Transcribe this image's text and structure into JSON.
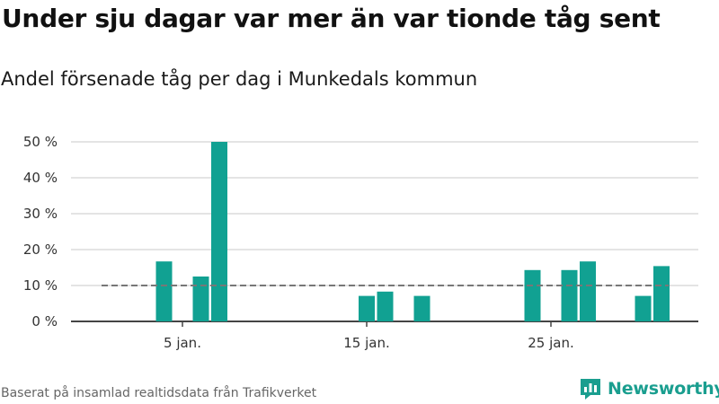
{
  "title": "Under sju dagar var mer än var tionde tåg sent",
  "subtitle": "Andel försenade tåg per dag i Munkedals kommun",
  "footer": "Baserat på insamlad realtidsdata från Trafikverket",
  "brand": {
    "name": "Newsworthy",
    "icon": "newsworthy-logo-icon",
    "color": "#1a9e8f"
  },
  "chart_data": {
    "type": "bar",
    "title": "Under sju dagar var mer än var tionde tåg sent",
    "subtitle": "Andel försenade tåg per dag i Munkedals kommun",
    "xlabel": "",
    "ylabel": "",
    "x_unit": "day of January",
    "x_range": [
      1,
      31
    ],
    "x_ticks": [
      {
        "value": 5,
        "label": "5 jan."
      },
      {
        "value": 15,
        "label": "15 jan."
      },
      {
        "value": 25,
        "label": "25 jan."
      }
    ],
    "ylim": [
      0,
      50
    ],
    "y_ticks": [
      {
        "value": 0,
        "label": "0 %"
      },
      {
        "value": 10,
        "label": "10 %"
      },
      {
        "value": 20,
        "label": "20 %"
      },
      {
        "value": 30,
        "label": "30 %"
      },
      {
        "value": 40,
        "label": "40 %"
      },
      {
        "value": 50,
        "label": "50 %"
      }
    ],
    "grid": true,
    "bar_color": "#11a192",
    "reference_line": {
      "value": 10,
      "style": "dashed",
      "color": "#777777"
    },
    "x": [
      4,
      6,
      7,
      15,
      16,
      18,
      24,
      26,
      27,
      30,
      31
    ],
    "values": [
      16.7,
      12.5,
      50.0,
      7.1,
      8.3,
      7.1,
      14.3,
      14.3,
      16.7,
      7.1,
      15.4
    ]
  }
}
